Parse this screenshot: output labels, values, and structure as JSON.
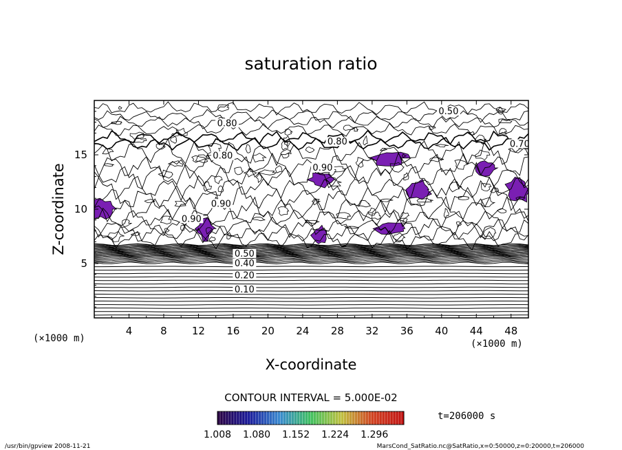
{
  "chart_data": {
    "type": "contour",
    "title": "saturation ratio",
    "xlabel": "X-coordinate",
    "ylabel": "Z-coordinate",
    "x_unit": "(×1000 m)",
    "x_unit_right": "(×1000 m)",
    "xlim": [
      0,
      50
    ],
    "ylim": [
      0,
      20
    ],
    "x_ticks": [
      4,
      8,
      12,
      16,
      20,
      24,
      28,
      32,
      36,
      40,
      44,
      48
    ],
    "y_ticks": [
      5,
      10,
      15
    ],
    "contour_interval_text": "CONTOUR INTERVAL = 5.000E-02",
    "contour_labels": [
      {
        "text": "0.10",
        "x": 17.3,
        "y": 2.4
      },
      {
        "text": "0.20",
        "x": 17.3,
        "y": 3.7
      },
      {
        "text": "0.40",
        "x": 17.3,
        "y": 4.8
      },
      {
        "text": "0.50",
        "x": 17.3,
        "y": 5.7
      },
      {
        "text": "0.90",
        "x": 14.6,
        "y": 10.3
      },
      {
        "text": "0.90",
        "x": 11.2,
        "y": 8.9
      },
      {
        "text": "0.80",
        "x": 14.8,
        "y": 14.7
      },
      {
        "text": "0.90",
        "x": 26.3,
        "y": 13.6
      },
      {
        "text": "0.80",
        "x": 28.0,
        "y": 16.0
      },
      {
        "text": "0.80",
        "x": 15.3,
        "y": 17.7
      },
      {
        "text": "0.50",
        "x": 40.8,
        "y": 18.8
      },
      {
        "text": "0.70",
        "x": 49.0,
        "y": 15.8
      }
    ],
    "supersaturated_regions": [
      {
        "x": 1.0,
        "y": 10.0
      },
      {
        "x": 12.8,
        "y": 8.2
      },
      {
        "x": 26.2,
        "y": 12.7
      },
      {
        "x": 34.2,
        "y": 8.2
      },
      {
        "x": 45.2,
        "y": 13.8
      },
      {
        "x": 48.8,
        "y": 11.7
      },
      {
        "x": 34.0,
        "y": 14.7
      },
      {
        "x": 26.0,
        "y": 7.6
      },
      {
        "x": 37.4,
        "y": 11.8
      }
    ],
    "colorbar": {
      "ticks": [
        "1.008",
        "1.080",
        "1.152",
        "1.224",
        "1.296"
      ],
      "range": [
        1.008,
        1.35
      ],
      "colors": [
        "#2a0040",
        "#1a1a9a",
        "#3a8ad0",
        "#40c060",
        "#c0c040",
        "#d04020",
        "#c01010"
      ]
    },
    "time_label": "t=206000 s",
    "footer_left": "/usr/bin/gpview   2008-11-21",
    "footer_right": "MarsCond_SatRatio.nc@SatRatio,x=0:50000,z=0:20000,t=206000",
    "fill_color": "#7a1fb3"
  }
}
